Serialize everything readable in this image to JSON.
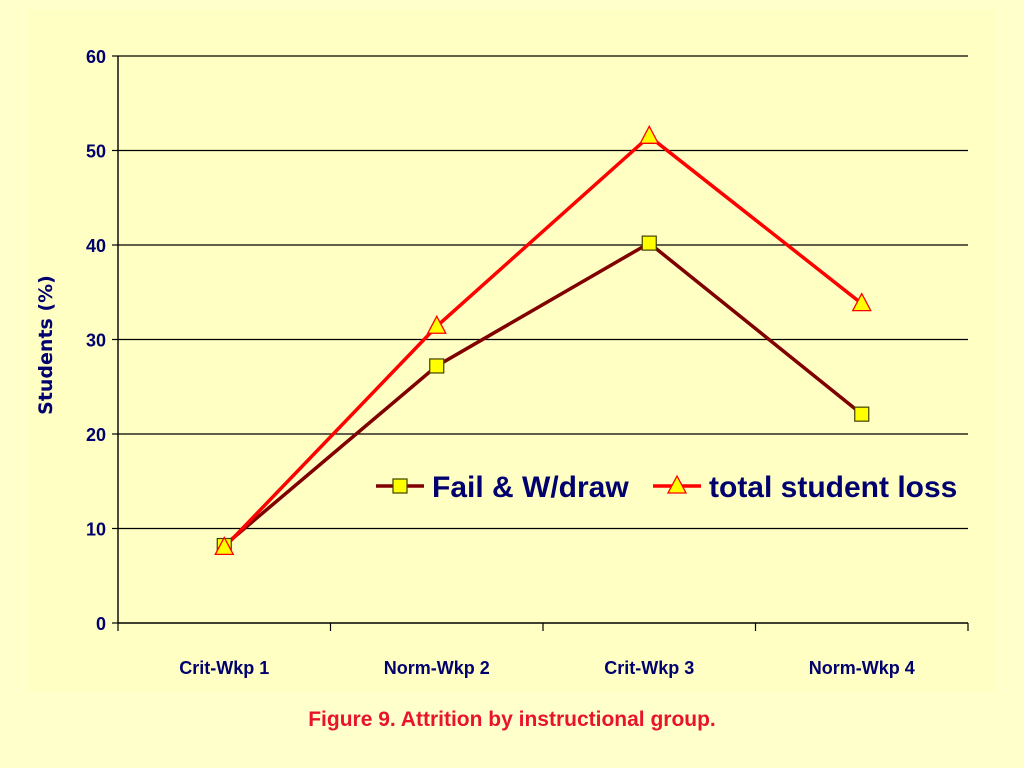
{
  "caption": "Figure 9. Attrition by instructional group.",
  "colors": {
    "background": "#FFFFCC",
    "text": "#00006E",
    "caption": "#E8142A",
    "marker_fill": "#FFFF00"
  },
  "chart_data": {
    "type": "line",
    "title": "",
    "xlabel": "",
    "ylabel": "Students (%)",
    "ylim": [
      0,
      60
    ],
    "yticks": [
      0,
      10,
      20,
      30,
      40,
      50,
      60
    ],
    "grid": true,
    "legend_position": "center-right",
    "categories": [
      "Crit-Wkp 1",
      "Norm-Wkp 2",
      "Crit-Wkp 3",
      "Norm-Wkp 4"
    ],
    "series": [
      {
        "name": "Fail & W/draw",
        "values": [
          8.2,
          27.2,
          40.2,
          22.1
        ],
        "color": "#800000",
        "marker": "square-icon"
      },
      {
        "name": "total student loss",
        "values": [
          8.0,
          31.4,
          51.5,
          33.8
        ],
        "color": "#FF0000",
        "marker": "triangle-icon"
      }
    ]
  }
}
